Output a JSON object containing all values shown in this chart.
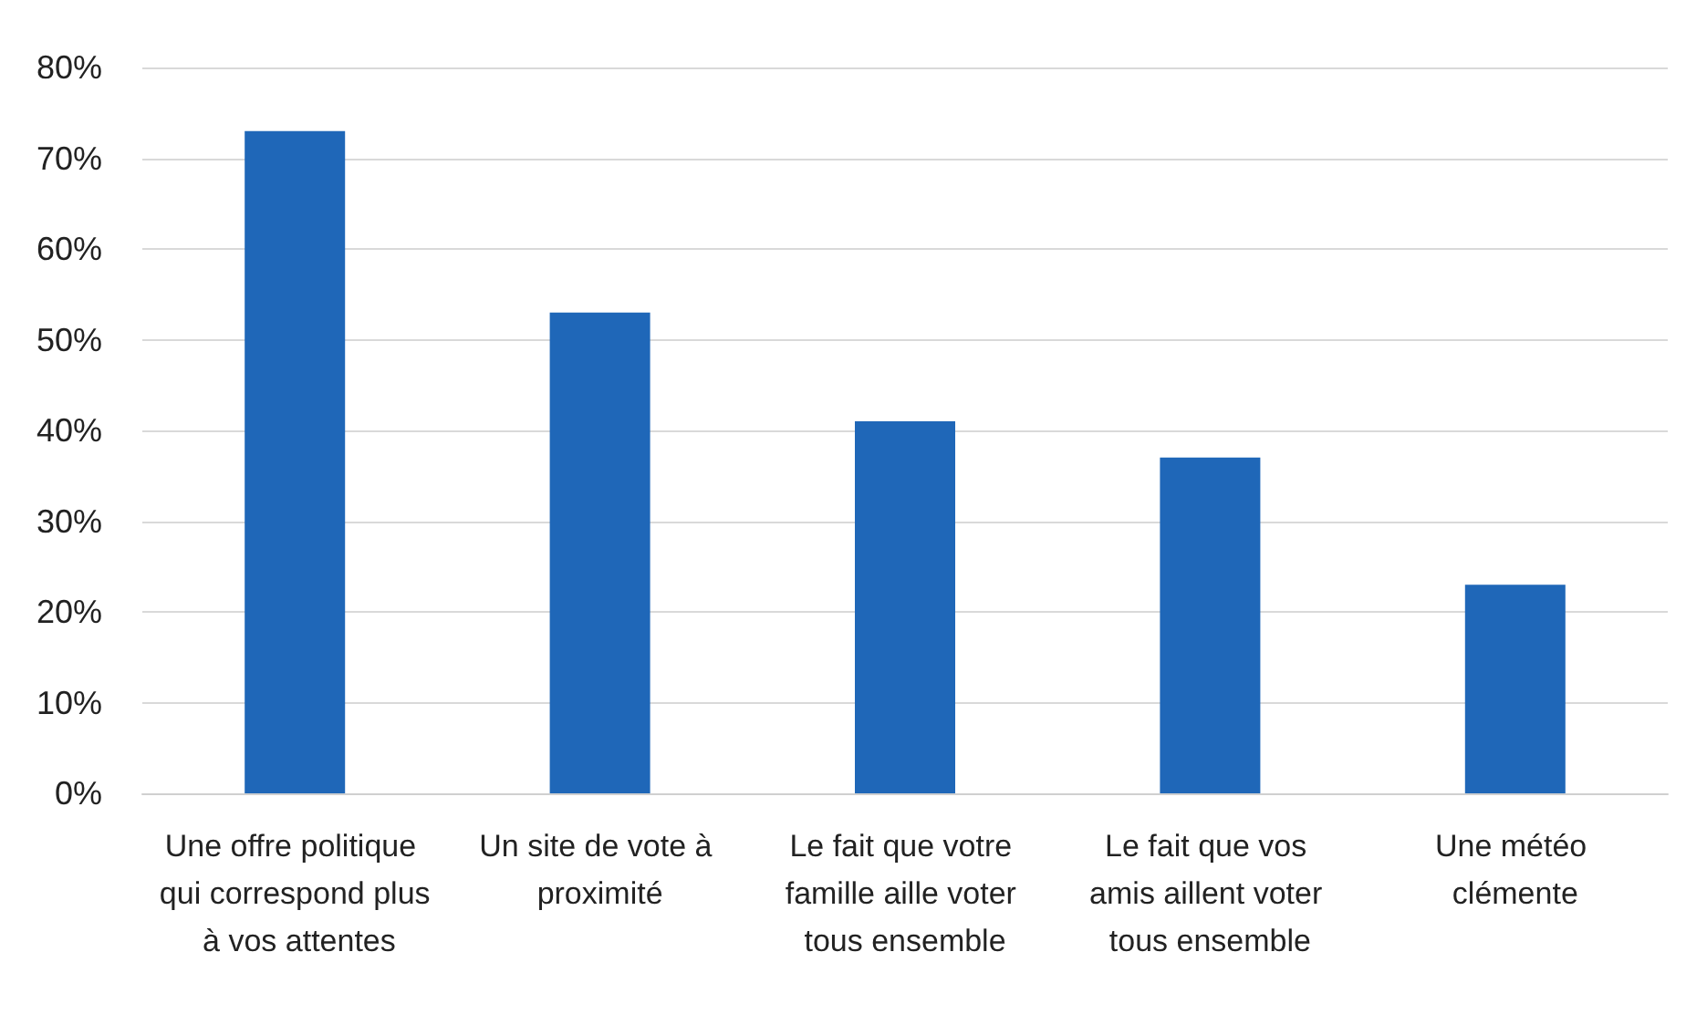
{
  "chart_data": {
    "type": "bar",
    "categories": [
      "Une offre politique qui correspond plus à vos attentes",
      "Un site de vote à proximité",
      "Le fait que votre famille aille voter tous ensemble",
      "Le fait que vos amis aillent voter tous ensemble",
      "Une météo clémente"
    ],
    "values": [
      73,
      53,
      41,
      37,
      23
    ],
    "color": "#1f67b8",
    "ylim": [
      0,
      80
    ],
    "yticks": [
      {
        "value": 0,
        "label": "0%"
      },
      {
        "value": 10,
        "label": "10%"
      },
      {
        "value": 20,
        "label": "20%"
      },
      {
        "value": 30,
        "label": "30%"
      },
      {
        "value": 40,
        "label": "40%"
      },
      {
        "value": 50,
        "label": "50%"
      },
      {
        "value": 60,
        "label": "60%"
      },
      {
        "value": 70,
        "label": "70%"
      },
      {
        "value": 80,
        "label": "80%"
      }
    ],
    "grid": "y"
  }
}
